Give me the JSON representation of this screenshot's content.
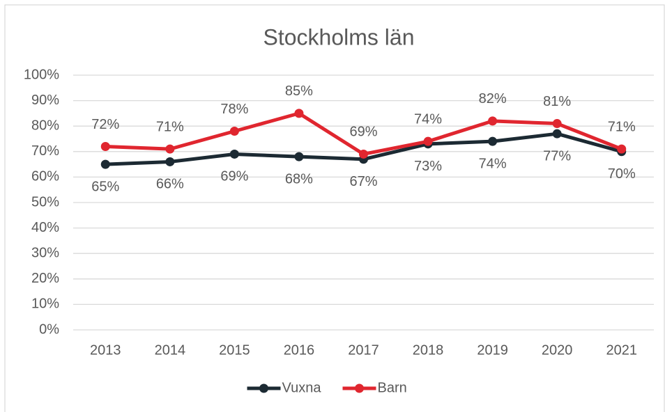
{
  "chart_data": {
    "type": "line",
    "title": "Stockholms län",
    "categories": [
      "2013",
      "2014",
      "2015",
      "2016",
      "2017",
      "2018",
      "2019",
      "2020",
      "2021"
    ],
    "series": [
      {
        "name": "Vuxna",
        "color": "#1c2a33",
        "values": [
          65,
          66,
          69,
          68,
          67,
          73,
          74,
          77,
          70
        ],
        "value_labels": [
          "65%",
          "66%",
          "69%",
          "68%",
          "67%",
          "73%",
          "74%",
          "77%",
          "70%"
        ]
      },
      {
        "name": "Barn",
        "color": "#e0262f",
        "values": [
          72,
          71,
          78,
          85,
          69,
          74,
          82,
          81,
          71
        ],
        "value_labels": [
          "72%",
          "71%",
          "78%",
          "85%",
          "69%",
          "74%",
          "82%",
          "81%",
          "71%"
        ]
      }
    ],
    "ylim": [
      0,
      100
    ],
    "yticks": [
      {
        "value": 0,
        "label": "0%"
      },
      {
        "value": 10,
        "label": "10%"
      },
      {
        "value": 20,
        "label": "20%"
      },
      {
        "value": 30,
        "label": "30%"
      },
      {
        "value": 40,
        "label": "40%"
      },
      {
        "value": 50,
        "label": "50%"
      },
      {
        "value": 60,
        "label": "60%"
      },
      {
        "value": 70,
        "label": "70%"
      },
      {
        "value": 80,
        "label": "80%"
      },
      {
        "value": 90,
        "label": "90%"
      },
      {
        "value": 100,
        "label": "100%"
      }
    ],
    "grid": true,
    "legend": "bottom"
  }
}
